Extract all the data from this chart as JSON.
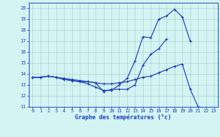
{
  "title": "Graphe des températures (°c)",
  "background_color": "#d4f4f4",
  "grid_color": "#b0cccc",
  "line_color": "#1a3fbf",
  "hours": [
    0,
    1,
    2,
    3,
    4,
    5,
    6,
    7,
    8,
    9,
    10,
    11,
    12,
    13,
    14,
    15,
    16,
    17,
    18,
    19,
    20,
    21,
    22,
    23
  ],
  "line1": [
    13.7,
    13.7,
    13.8,
    13.7,
    13.5,
    13.4,
    13.3,
    13.1,
    12.8,
    12.5,
    12.5,
    13.0,
    13.6,
    15.2,
    17.4,
    17.3,
    19.0,
    19.3,
    19.9,
    19.2,
    17.0,
    null,
    null,
    null
  ],
  "line2": [
    13.7,
    13.7,
    13.8,
    13.7,
    13.5,
    13.4,
    13.3,
    13.3,
    13.2,
    12.4,
    12.6,
    12.6,
    12.6,
    13.0,
    14.8,
    15.8,
    16.3,
    17.2,
    null,
    null,
    null,
    null,
    null,
    null
  ],
  "line3": [
    13.7,
    13.7,
    13.8,
    13.7,
    13.6,
    13.5,
    13.4,
    13.3,
    13.2,
    13.1,
    13.1,
    13.2,
    13.3,
    13.5,
    13.7,
    13.8,
    14.1,
    14.4,
    14.7,
    14.9,
    12.6,
    11.0,
    10.9,
    10.8
  ],
  "ylim": [
    11,
    20.5
  ],
  "yticks": [
    11,
    12,
    13,
    14,
    15,
    16,
    17,
    18,
    19,
    20
  ],
  "xlim": [
    -0.5,
    23.5
  ],
  "xlabel_fontsize": 6.0,
  "tick_fontsize": 5.0,
  "line_width": 0.9,
  "marker_size": 3.0
}
